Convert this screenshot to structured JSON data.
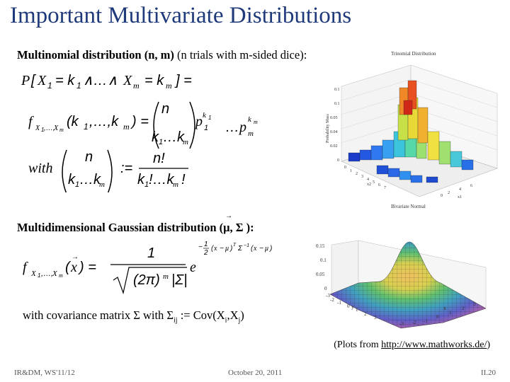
{
  "title": "Important Multivariate Distributions",
  "section1": {
    "heading_bold": "Multinomial distribution (n, m)",
    "heading_rest": "(n trials with m-sided dice):"
  },
  "section2": {
    "heading_prefix": "Multidimensional Gaussian distribution (",
    "heading_mu": "μ",
    "heading_mid": ", Σ",
    "heading_suffix": "):"
  },
  "covariance": {
    "prefix": "with covariance matrix Σ with Σ",
    "sub1": "ij",
    "middle": " := Cov(X",
    "sub2": "i",
    "comma": ",X",
    "sub3": "j",
    "end": ")"
  },
  "plots_credit": {
    "prefix": "(Plots from ",
    "link": "http://www.mathworks.de/",
    "suffix": ")"
  },
  "plot1": {
    "title": "Trinomial Distribution",
    "caption": "Bivariate Normal",
    "ylabel": "Probability Mass",
    "z_ticks": [
      "0.1",
      "0.1",
      "0.05",
      "0.04",
      "0.02",
      "0"
    ],
    "x_label": "x1",
    "y_label": "x2"
  },
  "plot2": {
    "z_ticks": [
      "0.15",
      "0.1",
      "0.05",
      "0"
    ],
    "y_ticks": [
      "-3",
      "-2",
      "-1",
      "0",
      "1",
      "2",
      "3"
    ],
    "x_ticks": [
      "-3",
      "-2",
      "-1",
      "0",
      "1",
      "2",
      "3"
    ],
    "y_label": "y",
    "x_label": "x"
  },
  "footer": {
    "left": "IR&DM, WS'11/12",
    "center": "October 20, 2011",
    "right": "II.20"
  }
}
